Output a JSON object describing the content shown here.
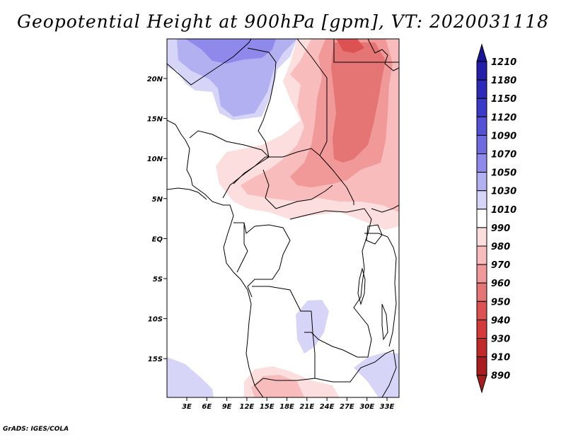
{
  "title": "Geopotential Height at 900hPa [gpm], VT: 2020031118",
  "credit": "GrADS: IGES/COLA",
  "map": {
    "lon_labels": [
      "3E",
      "6E",
      "9E",
      "12E",
      "15E",
      "18E",
      "21E",
      "24E",
      "27E",
      "30E",
      "33E"
    ],
    "lat_labels": [
      "20N",
      "15N",
      "10N",
      "5N",
      "EQ",
      "5S",
      "10S",
      "15S"
    ]
  },
  "colorbar": {
    "levels": [
      "1210",
      "1180",
      "1150",
      "1120",
      "1090",
      "1070",
      "1050",
      "1030",
      "1010",
      "990",
      "980",
      "970",
      "960",
      "950",
      "940",
      "930",
      "910",
      "890"
    ],
    "colors": [
      "#1a1596",
      "#231fa8",
      "#2e2ab9",
      "#3a39c8",
      "#5551d6",
      "#6f6ae0",
      "#8e89ea",
      "#b3b0f2",
      "#d6d5f8",
      "#ffffff",
      "#fcdede",
      "#f8bcbc",
      "#f19898",
      "#e57474",
      "#dc5151",
      "#d43a3a",
      "#c22a2a",
      "#a81d1d"
    ]
  },
  "fill_colors": {
    "blue_dark": "#8e89ea",
    "blue_mid": "#b3b0f2",
    "blue_light": "#d6d5f8",
    "red_light": "#fcdede",
    "red_mid": "#f8bcbc",
    "red_strong": "#f19898",
    "red_deep": "#e57474",
    "red_max": "#dc5151"
  }
}
